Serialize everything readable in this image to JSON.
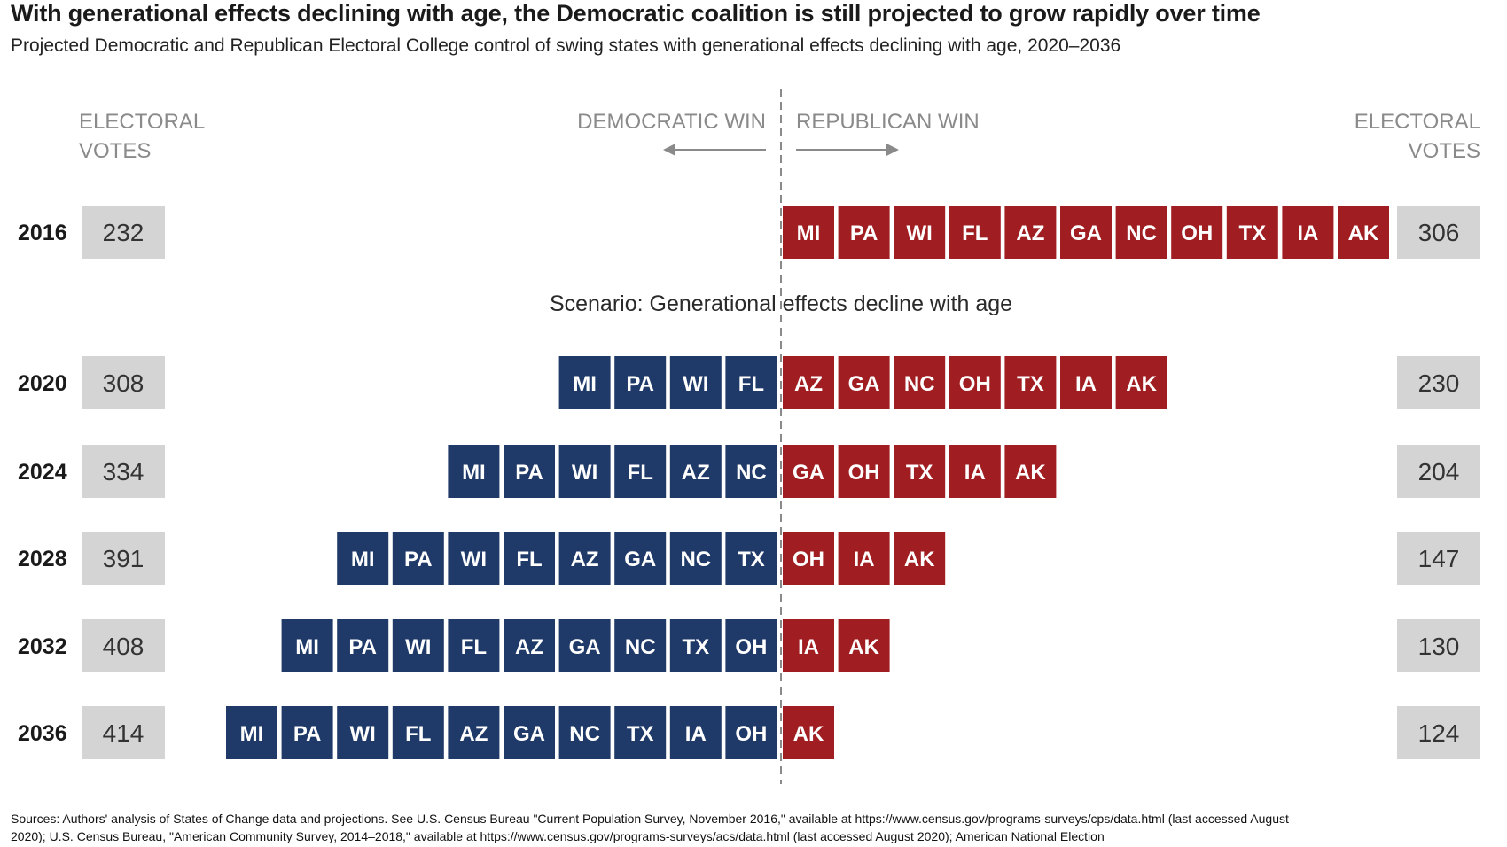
{
  "title": "With generational effects declining with age, the Democratic coalition is still projected to grow rapidly over time",
  "subtitle": "Projected Democratic and Republican Electoral College control of swing states with generational effects declining with age, 2020–2036",
  "sources": "Sources: Authors' analysis of States of Change data and projections. See U.S. Census Bureau \"Current Population Survey, November 2016,\" available at https://www.census.gov/programs-surveys/cps/data.html (last accessed August 2020); U.S. Census Bureau, \"American Community Survey, 2014–2018,\" available at https://www.census.gov/programs-surveys/acs/data.html (last accessed August 2020); American National Election",
  "chart_data": {
    "type": "bar",
    "title": "With generational effects declining with age, the Democratic coalition is still projected to grow rapidly over time",
    "subtitle": "Projected Democratic and Republican Electoral College control of swing states with generational effects declining with age, 2020–2036",
    "left_axis_label": [
      "ELECTORAL",
      "VOTES"
    ],
    "right_axis_label": [
      "ELECTORAL",
      "VOTES"
    ],
    "dem_label": "DEMOCRATIC WIN",
    "rep_label": "REPUBLICAN WIN",
    "scenario_label": "Scenario: Generational effects decline with age",
    "colors": {
      "dem": "#1f3a68",
      "rep": "#a01e22",
      "votebox": "#d4d4d4",
      "muted": "#8a8a8a"
    },
    "rows": [
      {
        "year": "2016",
        "dem_votes": "232",
        "rep_votes": "306",
        "dem_states": [],
        "rep_states": [
          "MI",
          "PA",
          "WI",
          "FL",
          "AZ",
          "GA",
          "NC",
          "OH",
          "TX",
          "IA",
          "AK"
        ]
      },
      {
        "year": "2020",
        "dem_votes": "308",
        "rep_votes": "230",
        "dem_states": [
          "MI",
          "PA",
          "WI",
          "FL"
        ],
        "rep_states": [
          "AZ",
          "GA",
          "NC",
          "OH",
          "TX",
          "IA",
          "AK"
        ]
      },
      {
        "year": "2024",
        "dem_votes": "334",
        "rep_votes": "204",
        "dem_states": [
          "MI",
          "PA",
          "WI",
          "FL",
          "AZ",
          "NC"
        ],
        "rep_states": [
          "GA",
          "OH",
          "TX",
          "IA",
          "AK"
        ]
      },
      {
        "year": "2028",
        "dem_votes": "391",
        "rep_votes": "147",
        "dem_states": [
          "MI",
          "PA",
          "WI",
          "FL",
          "AZ",
          "GA",
          "NC",
          "TX"
        ],
        "rep_states": [
          "OH",
          "IA",
          "AK"
        ]
      },
      {
        "year": "2032",
        "dem_votes": "408",
        "rep_votes": "130",
        "dem_states": [
          "MI",
          "PA",
          "WI",
          "FL",
          "AZ",
          "GA",
          "NC",
          "TX",
          "OH"
        ],
        "rep_states": [
          "IA",
          "AK"
        ]
      },
      {
        "year": "2036",
        "dem_votes": "414",
        "rep_votes": "124",
        "dem_states": [
          "MI",
          "PA",
          "WI",
          "FL",
          "AZ",
          "GA",
          "NC",
          "TX",
          "IA",
          "OH"
        ],
        "rep_states": [
          "AK"
        ]
      }
    ]
  }
}
